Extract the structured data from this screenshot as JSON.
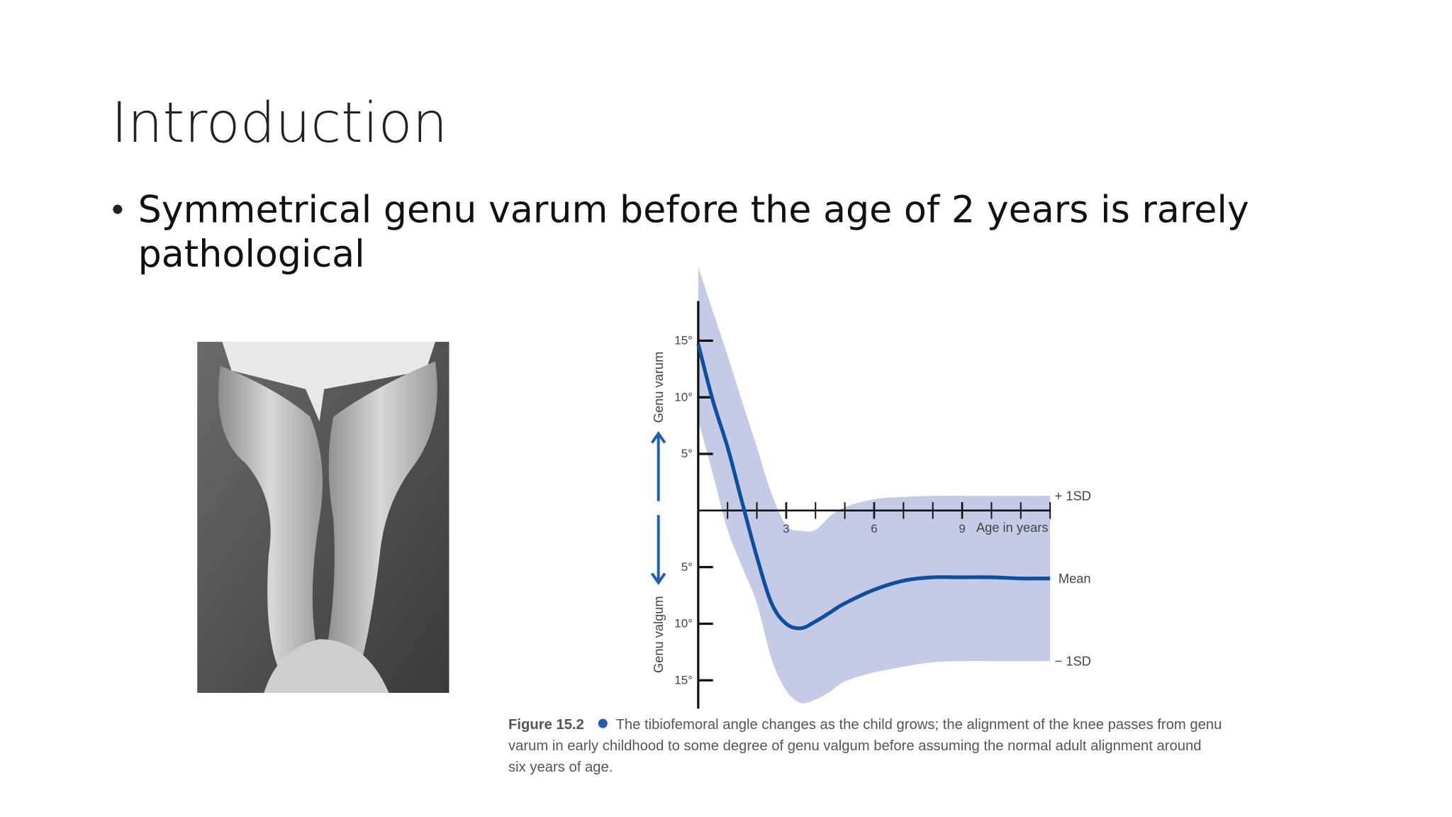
{
  "title": "Introduction",
  "bullets": [
    {
      "lines": [
        "Symmetrical genu varum before the age of 2 years is rarely",
        "pathological"
      ]
    }
  ],
  "chart_data": {
    "type": "line",
    "y_label_top": "Genu varum",
    "y_label_bottom": "Genu valgum",
    "x_label": "Age in years",
    "x": [
      0,
      0.5,
      1,
      1.5,
      2,
      2.5,
      3,
      3.5,
      4,
      4.5,
      5,
      6,
      7,
      8,
      9,
      10,
      11,
      12
    ],
    "series": [
      {
        "name": "+ 1SD",
        "color": "#c5cae6",
        "values": [
          21.5,
          17.6,
          13.7,
          9.6,
          5.6,
          1.5,
          -1.3,
          -1.8,
          -1.7,
          -0.5,
          0.3,
          1.0,
          1.2,
          1.3,
          1.3,
          1.3,
          1.3,
          1.3
        ]
      },
      {
        "name": "Mean",
        "color": "#0d4f9e",
        "values": [
          14.7,
          9.7,
          5.6,
          0.7,
          -4.1,
          -8.2,
          -10.0,
          -10.4,
          -9.8,
          -9.0,
          -8.2,
          -7.0,
          -6.2,
          -5.9,
          -5.9,
          -5.9,
          -6.0,
          -6.0
        ]
      },
      {
        "name": "− 1SD",
        "color": "#c5cae6",
        "values": [
          8.0,
          3.2,
          -1.7,
          -5.0,
          -8.2,
          -13.1,
          -15.9,
          -17.0,
          -16.7,
          -16.0,
          -15.1,
          -14.3,
          -13.8,
          -13.4,
          -13.3,
          -13.3,
          -13.3,
          -13.3
        ]
      }
    ],
    "xlim": [
      0,
      12
    ],
    "xticks": [
      3,
      6,
      9
    ],
    "xminorticks": [
      1,
      2,
      4,
      5,
      7,
      8,
      10,
      11,
      12
    ],
    "ylim": [
      -17.5,
      18.5
    ],
    "yticks": [
      {
        "value": 15,
        "label": "15°"
      },
      {
        "value": 10,
        "label": "10°"
      },
      {
        "value": 5,
        "label": "5°"
      },
      {
        "value": -5,
        "label": "5°"
      },
      {
        "value": -10,
        "label": "10°"
      },
      {
        "value": -15,
        "label": "15°"
      }
    ]
  },
  "caption": {
    "label": "Figure 15.2",
    "lines": [
      "The tibiofemoral angle changes as the child grows; the alignment of the knee passes from genu",
      "varum in early childhood to some degree of genu valgum before assuming the normal adult alignment around",
      "six years of age."
    ]
  }
}
